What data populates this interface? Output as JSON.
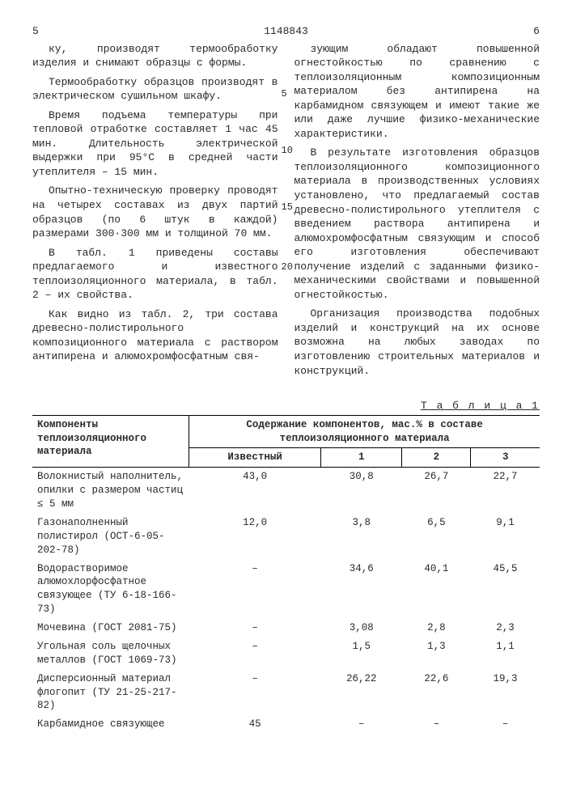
{
  "header": {
    "left_page": "5",
    "doc_number": "1148843",
    "right_page": "6"
  },
  "left_col": {
    "p1": "ку, производят термообработку изделия и снимают образцы с формы.",
    "p2": "Термообработку образцов производят в электрическом сушильном шкафу.",
    "p3": "Время подъема температуры при тепловой отработке составляет 1 час 45 мин. Длительность электрической выдержки при 95°С в средней части утеплителя – 15 мин.",
    "p4": "Опытно-техническую проверку проводят на четырех составах из двух партий образцов (по 6 штук в каждой) размерами 300·300 мм и толщиной 70 мм.",
    "p5": "В табл. 1 приведены составы предлагаемого и известного теплоизоляционного материала, в табл. 2 – их свойства.",
    "p6": "Как видно из табл. 2, три состава древесно-полистирольного композиционного материала с раствором антипирена и алюмохромфосфатным свя-"
  },
  "right_col": {
    "p1": "зующим обладают повышенной огнестойкостью по сравнению с теплоизоляционным композиционным материалом без антипирена на карбамидном связующем и имеют такие же или даже лучшие физико-механические характеристики.",
    "p2": "В результате изготовления образцов теплоизоляционного композиционного материала в производственных условиях установлено, что предлагаемый состав древесно-полистирольного утеплителя с введением раствора антипирена и алюмохромфосфатным связующим и способ его изготовления обеспечивают получение изделий с заданными физико-механическими свойствами и повышенной огнестойкостью.",
    "p3": "Организация производства подобных изделий и конструкций на их основе возможна на любых заводах по изготовлению строительных материалов и конструкций.",
    "ln5": "5",
    "ln10": "10",
    "ln15": "15",
    "ln20": "20"
  },
  "table": {
    "caption": "Т а б л и ц а  1",
    "head_left": "Компоненты теплоизоляционного материала",
    "head_group": "Содержание компонентов, мас.% в составе теплоизоляционного материала",
    "col_known": "Известный",
    "col1": "1",
    "col2": "2",
    "col3": "3",
    "rows": [
      {
        "name": "Волокнистый наполнитель, опилки с размером частиц ≤ 5 мм",
        "v": [
          "43,0",
          "30,8",
          "26,7",
          "22,7"
        ]
      },
      {
        "name": "Газонаполненный полистирол (ОСТ-6-05-202-78)",
        "v": [
          "12,0",
          "3,8",
          "6,5",
          "9,1"
        ]
      },
      {
        "name": "Водорастворимое алюмохлорфосфатное связующее (ТУ 6-18-166-73)",
        "v": [
          "–",
          "34,6",
          "40,1",
          "45,5"
        ]
      },
      {
        "name": "Мочевина (ГОСТ 2081-75)",
        "v": [
          "–",
          "3,08",
          "2,8",
          "2,3"
        ]
      },
      {
        "name": "Угольная соль щелочных металлов (ГОСТ 1069-73)",
        "v": [
          "–",
          "1,5",
          "1,3",
          "1,1"
        ]
      },
      {
        "name": "Дисперсионный материал флогопит (ТУ 21-25-217-82)",
        "v": [
          "–",
          "26,22",
          "22,6",
          "19,3"
        ]
      },
      {
        "name": "Карбамидное связующее",
        "v": [
          "45",
          "–",
          "–",
          "–"
        ]
      }
    ]
  }
}
